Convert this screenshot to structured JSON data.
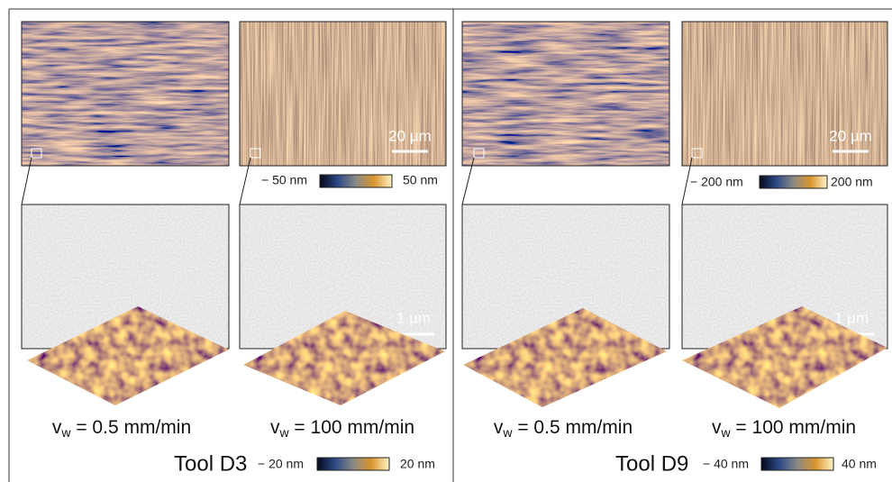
{
  "tools": [
    {
      "name": "Tool D3",
      "top_colorbar": {
        "min": "− 50 nm",
        "max": "50 nm"
      },
      "bottom_colorbar": {
        "min": "− 20 nm",
        "max": "20 nm"
      },
      "top_scale": "20 µm",
      "bottom_scale": "1 µm",
      "panels": [
        {
          "symbol": "v",
          "subscript": "w",
          "text": " = 0.5 mm/min"
        },
        {
          "symbol": "v",
          "subscript": "w",
          "text": " = 100 mm/min"
        }
      ]
    },
    {
      "name": "Tool D9",
      "top_colorbar": {
        "min": "− 200 nm",
        "max": "200 nm"
      },
      "bottom_colorbar": {
        "min": "− 40 nm",
        "max": "40 nm"
      },
      "top_scale": "20 µm",
      "bottom_scale": "1 µm",
      "panels": [
        {
          "symbol": "v",
          "subscript": "w",
          "text": " = 0.5 mm/min"
        },
        {
          "symbol": "v",
          "subscript": "w",
          "text": " = 100 mm/min"
        }
      ]
    }
  ]
}
